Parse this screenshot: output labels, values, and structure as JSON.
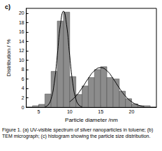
{
  "chart_data": {
    "type": "histogram",
    "panel_label": "c)",
    "caption": "Figure 1. (a) UV-visible spectrum of silver nanoparticles in toluene; (b) TEM micrograph; (c) histogram showing the particle size distribution.",
    "xlabel": "Particle diameter /nm",
    "ylabel": "Distribution / %",
    "bins": [
      4,
      5,
      6,
      7,
      8,
      9,
      10,
      11,
      12,
      13,
      14,
      15,
      16,
      17,
      18,
      19,
      20,
      21,
      22,
      23
    ],
    "values": [
      0.3,
      0.6,
      2.8,
      7.6,
      18.3,
      20.2,
      6.5,
      2.7,
      4.5,
      6.3,
      8.0,
      8.6,
      6.3,
      6.0,
      3.4,
      1.8,
      0.7,
      0.3,
      0.3
    ],
    "color": "#8c8c8c",
    "series": [
      {
        "type": "line",
        "color": "#000000",
        "x": [
          6,
          6.5,
          7,
          7.5,
          8,
          8.5,
          9,
          9.5,
          10,
          10.5,
          11,
          11.5,
          12
        ],
        "values": [
          0.08,
          0.43,
          1.73,
          5.08,
          11.0,
          17.5,
          20.4,
          17.5,
          11.0,
          5.08,
          1.73,
          0.43,
          0.08
        ]
      },
      {
        "type": "line",
        "color": "#000000",
        "x": [
          10,
          11,
          12,
          13,
          14,
          15,
          16,
          17,
          18,
          19,
          20,
          21,
          22
        ],
        "values": [
          1.14,
          2.34,
          4.09,
          6.1,
          7.75,
          8.4,
          7.75,
          6.1,
          4.09,
          2.34,
          1.14,
          0.47,
          0.17
        ]
      }
    ],
    "xlim": [
      3,
      24
    ],
    "xticks": [
      5,
      10,
      15,
      20
    ],
    "ylim": [
      0,
      21
    ],
    "yticks": [
      0,
      2,
      4,
      6,
      8,
      10,
      12,
      14,
      16,
      18,
      20
    ],
    "grid": false
  }
}
